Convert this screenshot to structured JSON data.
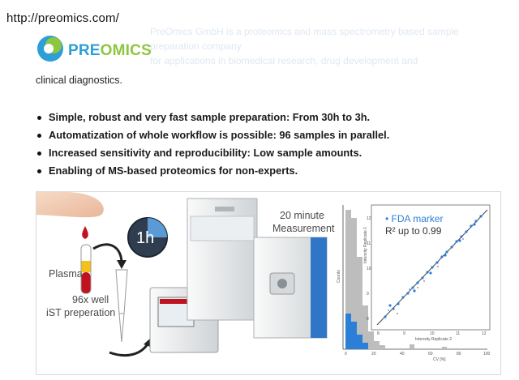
{
  "url": "http://preomics.com/",
  "ghost_text": {
    "line1": "PreOmics GmbH is a proteomics and mass spectrometry based sample",
    "line2": "preparation company",
    "line3": "for applications in biomedical research, drug development and"
  },
  "logo": {
    "part1": "PRE",
    "part2": "OMICS",
    "colors": {
      "blue": "#2c9fd6",
      "green": "#8dc63f"
    }
  },
  "description": "clinical diagnostics.",
  "bullets": [
    "Simple, robust and very fast sample preparation: From 30h to 3h.",
    "Automatization of whole workflow is possible: 96 samples in parallel.",
    "Increased sensitivity and reproducibility: Low sample amounts.",
    "Enabling of MS-based proteomics for non-experts."
  ],
  "figure": {
    "plasma_label": "Plasma",
    "clock_label": "1h",
    "well_label_1": "96x well",
    "well_label_2": "iST preperation",
    "measurement_label_1": "20 minute",
    "measurement_label_2": "Measurement",
    "legend_marker": "• FDA marker",
    "legend_r2": "R² up to 0.99",
    "scatter_xlabel": "Intensity Replicate 2",
    "scatter_ylabel": "Intensity Replicate 1",
    "hist_xlabel": "CV [%]",
    "hist_ylabel": "Counts",
    "scatter_x_ticks": [
      "8",
      "9",
      "10",
      "11",
      "12"
    ],
    "scatter_y_ticks": [
      "8",
      "9",
      "10",
      "11",
      "12"
    ],
    "hist_x_ticks": [
      "0",
      "20",
      "40",
      "60",
      "80",
      "100"
    ]
  }
}
